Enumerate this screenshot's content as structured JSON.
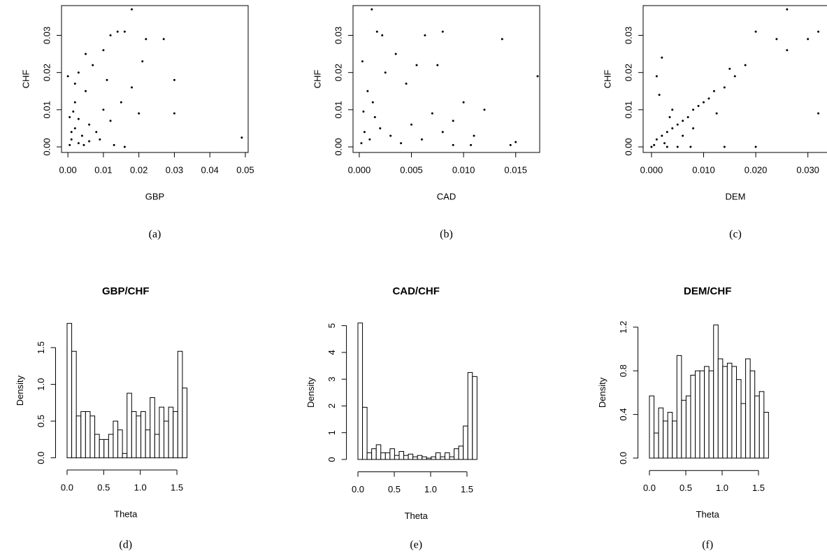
{
  "chart_data": [
    {
      "type": "scatter",
      "xlabel": "GBP",
      "ylabel": "CHF",
      "caption": "(a)",
      "x": [
        0.001,
        0.002,
        0.003,
        0.0005,
        0.004,
        0.006,
        0.002,
        0.008,
        0.01,
        0.012,
        0.005,
        0.015,
        0.018,
        0.02,
        0.003,
        0.007,
        0.011,
        0.014,
        0.018,
        0.022,
        0.027,
        0.03,
        0.03,
        0.049,
        0.0005,
        0.001,
        0.0015,
        0.003,
        0.0045,
        0.006,
        0.009,
        0.013,
        0.016,
        0.002,
        0.005,
        0.01,
        0.012,
        0.016,
        0.021,
        0
      ],
      "y": [
        0.002,
        0.005,
        0.001,
        0.008,
        0.003,
        0.006,
        0.012,
        0.004,
        0.01,
        0.007,
        0.015,
        0.012,
        0.016,
        0.009,
        0.02,
        0.022,
        0.018,
        0.031,
        0.037,
        0.029,
        0.029,
        0.018,
        0.009,
        0.0025,
        0.0005,
        0.004,
        0.0095,
        0.0075,
        0.0005,
        0.0015,
        0.002,
        0.0005,
        0,
        0.017,
        0.025,
        0.026,
        0.03,
        0.031,
        0.023,
        0.019
      ],
      "xlim": [
        -0.0018,
        0.0508
      ],
      "ylim": [
        -0.0015,
        0.038
      ],
      "xticks": [
        {
          "value": 0,
          "label": "0.00"
        },
        0.01,
        0.02,
        0.03,
        0.04,
        0.05
      ],
      "yticks": [
        {
          "value": 0,
          "label": "0.00"
        },
        0.01,
        0.02,
        0.03
      ]
    },
    {
      "type": "scatter",
      "xlabel": "CAD",
      "ylabel": "CHF",
      "caption": "(b)",
      "x": [
        0.0002,
        0.0005,
        0.001,
        0.0015,
        0.002,
        0.003,
        0.004,
        0.005,
        0.006,
        0.007,
        0.008,
        0.009,
        0.01,
        0.011,
        0.012,
        0.0012,
        0.0017,
        0.0022,
        0.0063,
        0.008,
        0.0137,
        0.0171,
        0.0145,
        0.015,
        0.0003,
        0.0008,
        0.0025,
        0.0035,
        0.0045,
        0.0055,
        0.0075,
        0.009,
        0.0107,
        0.0004,
        0.0013
      ],
      "y": [
        0.001,
        0.004,
        0.002,
        0.008,
        0.005,
        0.003,
        0.001,
        0.006,
        0.002,
        0.009,
        0.004,
        0.007,
        0.012,
        0.003,
        0.01,
        0.037,
        0.031,
        0.03,
        0.03,
        0.031,
        0.029,
        0.019,
        0.0005,
        0.0013,
        0.023,
        0.015,
        0.02,
        0.025,
        0.017,
        0.022,
        0.022,
        0.0005,
        0.0005,
        0.0095,
        0.012
      ],
      "xlim": [
        -0.0006,
        0.0173
      ],
      "ylim": [
        -0.0015,
        0.038
      ],
      "xticks": [
        {
          "value": 0,
          "label": "0.000"
        },
        0.005,
        {
          "value": 0.01,
          "label": "0.010"
        },
        0.015
      ],
      "yticks": [
        {
          "value": 0,
          "label": "0.00"
        },
        0.01,
        0.02,
        0.03
      ]
    },
    {
      "type": "scatter",
      "xlabel": "DEM",
      "ylabel": "CHF",
      "caption": "(c)",
      "x": [
        0.0005,
        0.001,
        0.002,
        0.003,
        0.004,
        0.005,
        0.006,
        0.007,
        0.008,
        0.009,
        0.01,
        0.011,
        0.012,
        0.014,
        0.016,
        0.018,
        0.02,
        0.024,
        0.026,
        0.026,
        0.03,
        0.032,
        0.032,
        0.001,
        0.002,
        0.0015,
        0.003,
        0.005,
        0.0075,
        0.014,
        0.02,
        0.004,
        0.006,
        0.008,
        0.0125,
        0.015,
        0.0025,
        0.0035,
        0
      ],
      "y": [
        0.0005,
        0.002,
        0.003,
        0.004,
        0.005,
        0.006,
        0.007,
        0.008,
        0.01,
        0.011,
        0.012,
        0.013,
        0.015,
        0.016,
        0.019,
        0.022,
        0.031,
        0.029,
        0.026,
        0.037,
        0.029,
        0.031,
        0.009,
        0.019,
        0.024,
        0.014,
        0,
        0,
        0,
        0,
        0,
        0.01,
        0.003,
        0.005,
        0.009,
        0.021,
        0.001,
        0.008,
        0
      ],
      "xlim": [
        -0.0016,
        0.0338
      ],
      "ylim": [
        -0.0015,
        0.038
      ],
      "xticks": [
        {
          "value": 0,
          "label": "0.000"
        },
        {
          "value": 0.01,
          "label": "0.010"
        },
        {
          "value": 0.02,
          "label": "0.020"
        },
        {
          "value": 0.03,
          "label": "0.030"
        }
      ],
      "yticks": [
        {
          "value": 0,
          "label": "0.00"
        },
        0.01,
        0.02,
        0.03
      ]
    },
    {
      "type": "histogram",
      "title": "GBP/CHF",
      "xlabel": "Theta",
      "ylabel": "Density",
      "caption": "(d)",
      "bins": [
        0,
        0.063,
        0.126,
        0.189,
        0.252,
        0.315,
        0.378,
        0.441,
        0.504,
        0.567,
        0.63,
        0.693,
        0.756,
        0.819,
        0.882,
        0.945,
        1.008,
        1.071,
        1.134,
        1.197,
        1.26,
        1.323,
        1.386,
        1.449,
        1.512,
        1.575,
        1.638
      ],
      "values": [
        1.83,
        1.45,
        0.57,
        0.63,
        0.63,
        0.57,
        0.32,
        0.25,
        0.25,
        0.32,
        0.5,
        0.38,
        0.06,
        0.88,
        0.63,
        0.57,
        0.63,
        0.38,
        0.82,
        0.32,
        0.69,
        0.5,
        0.69,
        0.63,
        1.45,
        0.95
      ],
      "xlim": [
        -0.1,
        1.7
      ],
      "ylim": [
        -0.07,
        1.9
      ],
      "xticks": [
        {
          "value": 0,
          "label": "0.0"
        },
        0.5,
        {
          "value": 1,
          "label": "1.0"
        },
        1.5
      ],
      "yticks": [
        {
          "value": 0,
          "label": "0.0"
        },
        0.5,
        {
          "value": 1,
          "label": "1.0"
        },
        1.5
      ]
    },
    {
      "type": "histogram",
      "title": "CAD/CHF",
      "xlabel": "Theta",
      "ylabel": "Density",
      "caption": "(e)",
      "bins": [
        0,
        0.063,
        0.126,
        0.189,
        0.252,
        0.315,
        0.378,
        0.441,
        0.504,
        0.567,
        0.63,
        0.693,
        0.756,
        0.819,
        0.882,
        0.945,
        1.008,
        1.071,
        1.134,
        1.197,
        1.26,
        1.323,
        1.386,
        1.449,
        1.512,
        1.575,
        1.638
      ],
      "values": [
        5.1,
        1.95,
        0.25,
        0.4,
        0.55,
        0.25,
        0.25,
        0.4,
        0.15,
        0.3,
        0.15,
        0.2,
        0.1,
        0.15,
        0.1,
        0.05,
        0.1,
        0.25,
        0.1,
        0.25,
        0.1,
        0.4,
        0.5,
        1.25,
        3.25,
        3.1
      ],
      "xlim": [
        -0.1,
        1.7
      ],
      "ylim": [
        -0.2,
        5.2
      ],
      "xticks": [
        {
          "value": 0,
          "label": "0.0"
        },
        0.5,
        {
          "value": 1,
          "label": "1.0"
        },
        1.5
      ],
      "yticks": [
        0,
        1,
        2,
        3,
        4,
        5
      ]
    },
    {
      "type": "histogram",
      "title": "DEM/CHF",
      "xlabel": "Theta",
      "ylabel": "Density",
      "caption": "(f)",
      "bins": [
        0,
        0.063,
        0.126,
        0.189,
        0.252,
        0.315,
        0.378,
        0.441,
        0.504,
        0.567,
        0.63,
        0.693,
        0.756,
        0.819,
        0.882,
        0.945,
        1.008,
        1.071,
        1.134,
        1.197,
        1.26,
        1.323,
        1.386,
        1.449,
        1.512,
        1.575,
        1.638
      ],
      "values": [
        0.57,
        0.23,
        0.46,
        0.34,
        0.42,
        0.34,
        0.94,
        0.53,
        0.57,
        0.76,
        0.8,
        0.8,
        0.84,
        0.8,
        1.22,
        0.91,
        0.84,
        0.87,
        0.84,
        0.72,
        0.5,
        0.91,
        0.8,
        0.57,
        0.61,
        0.42
      ],
      "xlim": [
        -0.1,
        1.7
      ],
      "ylim": [
        -0.05,
        1.25
      ],
      "xticks": [
        {
          "value": 0,
          "label": "0.0"
        },
        0.5,
        {
          "value": 1,
          "label": "1.0"
        },
        1.5
      ],
      "yticks": [
        {
          "value": 0,
          "label": "0.0"
        },
        0.4,
        0.8,
        1.2
      ]
    }
  ]
}
